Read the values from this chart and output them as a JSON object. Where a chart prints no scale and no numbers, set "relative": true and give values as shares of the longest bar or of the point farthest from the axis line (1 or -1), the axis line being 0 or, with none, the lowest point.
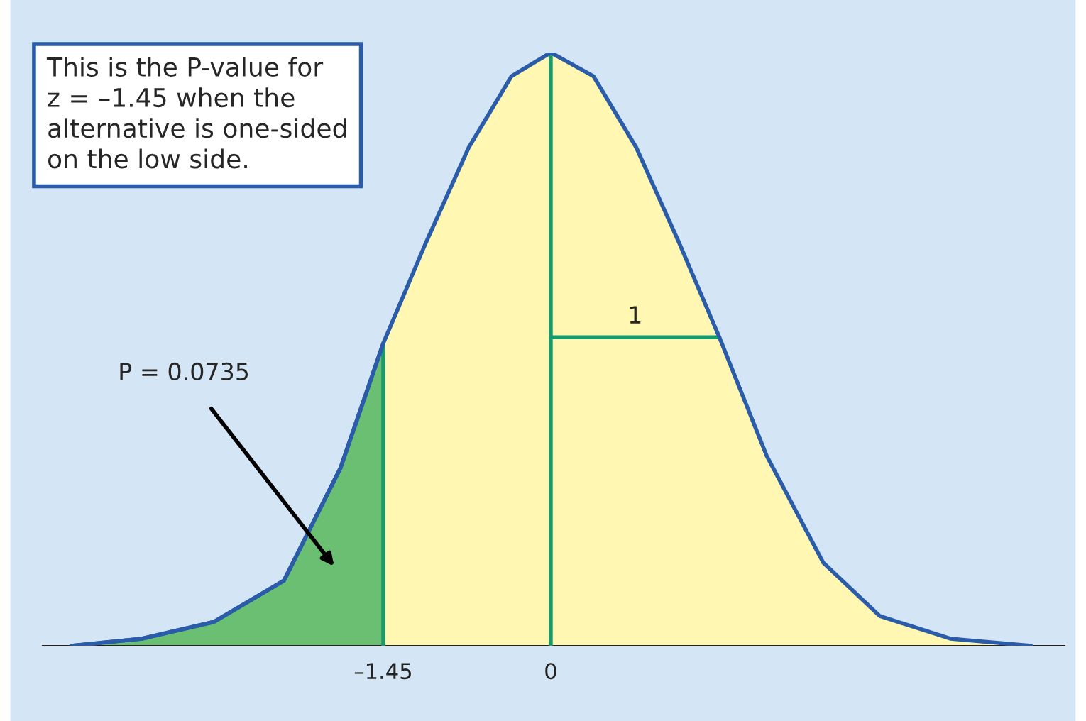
{
  "chart_data": {
    "type": "area",
    "relative": true,
    "xlim": [
      -4.4,
      4.45
    ],
    "xticks": [
      {
        "value": -1.45,
        "label": "–1.45"
      },
      0
    ],
    "tick_labels": "x",
    "grid": false,
    "legend": false,
    "series": [
      {
        "color": "#fff7b2",
        "x": [
          -4.15,
          -3.54,
          -2.92,
          -2.31,
          -1.82,
          -1.45,
          -1.08,
          -0.71,
          -0.34,
          0,
          0.37,
          0.74,
          1.11,
          1.46,
          1.87,
          2.36,
          2.85,
          3.46,
          4.16
        ],
        "values": [
          0,
          0.012,
          0.04,
          0.11,
          0.3,
          0.51,
          0.68,
          0.84,
          0.96,
          1,
          0.96,
          0.84,
          0.68,
          0.52,
          0.32,
          0.14,
          0.05,
          0.012,
          0
        ]
      },
      {
        "color": "#6abf73",
        "x": [
          -4.15,
          -3.54,
          -2.92,
          -2.31,
          -1.82,
          -1.45
        ],
        "values": [
          0,
          0.012,
          0.04,
          0.11,
          0.3,
          0.51
        ]
      },
      {
        "type": "line",
        "color": "#1a9a6a",
        "x": [
          0,
          1.46
        ],
        "values": [
          0.52,
          0.52
        ]
      }
    ],
    "ref_lines": [
      {
        "axis": "x",
        "value": -1.45,
        "color": "#1a9a6a"
      },
      {
        "axis": "x",
        "value": 0,
        "color": "#1a9a6a"
      }
    ],
    "annotations": [
      "This is the P-value for\nz = –1.45 when the\nalternative is one-sided\non the low side.",
      {
        "text": "1",
        "x": 0.73,
        "y": 0.52
      },
      "P = 0.0735"
    ]
  }
}
